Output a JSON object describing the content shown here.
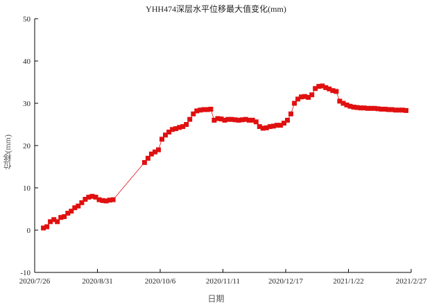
{
  "chart_data": {
    "type": "scatter",
    "title": "YHH474深层水平位移最大值变化(mm)",
    "xlabel": "日期",
    "ylabel": "位移(mm)",
    "xlim": [
      "2020-07-26",
      "2021-02-27"
    ],
    "ylim": [
      -10,
      50
    ],
    "x_ticks": [
      "2020/7/26",
      "2020/8/31",
      "2020/10/6",
      "2020/11/11",
      "2020/12/17",
      "2021/1/22",
      "2021/2/27"
    ],
    "y_ticks": [
      -10,
      0,
      10,
      20,
      30,
      40,
      50
    ],
    "grid": false,
    "marker_color": "#e01010",
    "line_color": "#e01010",
    "series": [
      {
        "x": [
          "2020-07-31",
          "2020-08-02",
          "2020-08-04",
          "2020-08-06",
          "2020-08-08",
          "2020-08-10",
          "2020-08-12",
          "2020-08-14",
          "2020-08-16",
          "2020-08-18",
          "2020-08-20",
          "2020-08-22",
          "2020-08-24",
          "2020-08-26",
          "2020-08-28",
          "2020-08-30",
          "2020-09-01",
          "2020-09-03",
          "2020-09-05",
          "2020-09-07",
          "2020-09-09",
          "2020-09-27",
          "2020-09-29",
          "2020-10-01",
          "2020-10-03",
          "2020-10-05",
          "2020-10-07",
          "2020-10-09",
          "2020-10-11",
          "2020-10-13",
          "2020-10-15",
          "2020-10-17",
          "2020-10-19",
          "2020-10-21",
          "2020-10-23",
          "2020-10-25",
          "2020-10-27",
          "2020-10-29",
          "2020-10-31",
          "2020-11-02",
          "2020-11-04",
          "2020-11-06",
          "2020-11-08",
          "2020-11-10",
          "2020-11-12",
          "2020-11-14",
          "2020-11-16",
          "2020-11-18",
          "2020-11-20",
          "2020-11-22",
          "2020-11-24",
          "2020-11-26",
          "2020-11-28",
          "2020-11-30",
          "2020-12-02",
          "2020-12-04",
          "2020-12-06",
          "2020-12-08",
          "2020-12-10",
          "2020-12-12",
          "2020-12-14",
          "2020-12-16",
          "2020-12-18",
          "2020-12-20",
          "2020-12-22",
          "2020-12-24",
          "2020-12-26",
          "2020-12-28",
          "2020-12-30",
          "2021-01-01",
          "2021-01-03",
          "2021-01-05",
          "2021-01-07",
          "2021-01-09",
          "2021-01-11",
          "2021-01-13",
          "2021-01-15",
          "2021-01-17",
          "2021-01-19",
          "2021-01-21",
          "2021-01-23",
          "2021-01-25",
          "2021-01-27",
          "2021-01-29",
          "2021-01-31",
          "2021-02-02",
          "2021-02-04",
          "2021-02-06",
          "2021-02-08",
          "2021-02-10",
          "2021-02-12",
          "2021-02-14",
          "2021-02-16",
          "2021-02-18",
          "2021-02-20",
          "2021-02-22",
          "2021-02-24"
        ],
        "y": [
          0.5,
          0.8,
          2.0,
          2.5,
          2.0,
          3.0,
          3.2,
          4.0,
          4.5,
          5.3,
          5.7,
          6.5,
          7.3,
          7.8,
          8.0,
          7.8,
          7.2,
          7.0,
          6.9,
          7.1,
          7.2,
          16.0,
          17.0,
          18.0,
          18.5,
          19.0,
          21.5,
          22.5,
          23.2,
          23.8,
          24.0,
          24.3,
          24.5,
          25.0,
          26.2,
          27.5,
          28.2,
          28.4,
          28.5,
          28.5,
          28.6,
          26.0,
          26.4,
          26.3,
          26.0,
          26.2,
          26.2,
          26.1,
          26.0,
          26.1,
          26.2,
          26.0,
          26.0,
          25.6,
          24.5,
          24.1,
          24.2,
          24.5,
          24.6,
          24.8,
          24.8,
          25.3,
          26.0,
          27.5,
          30.0,
          31.0,
          31.5,
          31.6,
          31.4,
          32.0,
          33.5,
          34.0,
          34.1,
          33.7,
          33.4,
          33.0,
          32.8,
          30.5,
          30.0,
          29.6,
          29.3,
          29.1,
          29.0,
          28.9,
          28.9,
          28.8,
          28.8,
          28.8,
          28.7,
          28.6,
          28.6,
          28.5,
          28.5,
          28.4,
          28.4,
          28.4,
          28.3
        ]
      }
    ]
  }
}
